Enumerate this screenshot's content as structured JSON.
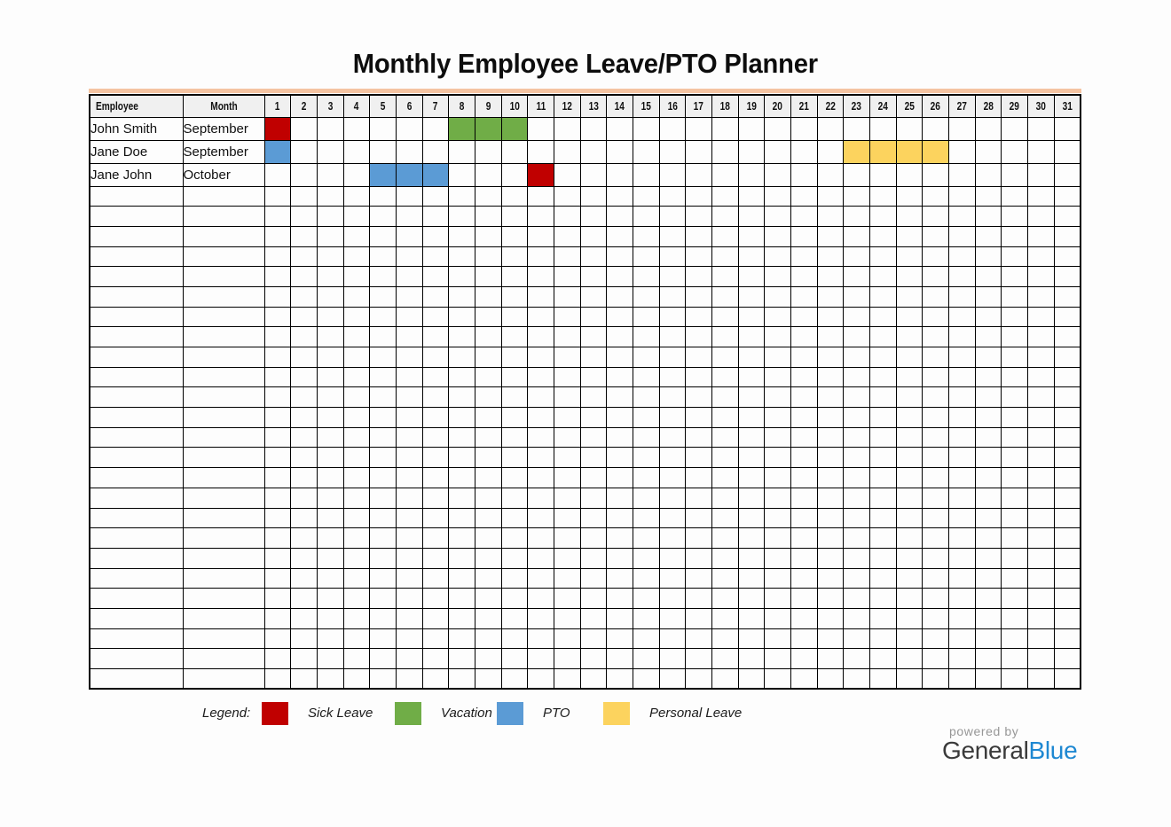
{
  "title": "Monthly Employee Leave/PTO Planner",
  "table": {
    "headers": {
      "employee": "Employee",
      "month": "Month"
    },
    "day_headers": [
      "1",
      "2",
      "3",
      "4",
      "5",
      "6",
      "7",
      "8",
      "9",
      "10",
      "11",
      "12",
      "13",
      "14",
      "15",
      "16",
      "17",
      "18",
      "19",
      "20",
      "21",
      "22",
      "23",
      "24",
      "25",
      "26",
      "27",
      "28",
      "29",
      "30",
      "31"
    ],
    "rows": [
      {
        "employee": "John Smith",
        "month": "September",
        "leaves": [
          {
            "type": "sick",
            "days": [
              1
            ]
          },
          {
            "type": "vacation",
            "days": [
              8,
              9,
              10
            ]
          }
        ]
      },
      {
        "employee": "Jane Doe",
        "month": "September",
        "leaves": [
          {
            "type": "pto",
            "days": [
              1
            ]
          },
          {
            "type": "personal",
            "days": [
              23,
              24,
              25,
              26
            ]
          }
        ]
      },
      {
        "employee": "Jane John",
        "month": "October",
        "leaves": [
          {
            "type": "pto",
            "days": [
              5,
              6,
              7
            ]
          },
          {
            "type": "sick",
            "days": [
              11
            ]
          }
        ]
      }
    ],
    "empty_row_count": 25
  },
  "legend": {
    "label": "Legend:",
    "items": [
      {
        "type": "sick",
        "label": "Sick Leave"
      },
      {
        "type": "vacation",
        "label": "Vacation"
      },
      {
        "type": "pto",
        "label": "PTO"
      },
      {
        "type": "personal",
        "label": "Personal Leave"
      }
    ]
  },
  "colors": {
    "sick": "#c00000",
    "vacation": "#70ad47",
    "pto": "#5b9bd5",
    "personal": "#fcd35e",
    "header_bg": "#f0f0f0",
    "accent_band": "#f5c4a2",
    "brand_blue": "#1e88d2"
  },
  "footer": {
    "powered_by": "powered by",
    "brand_general": "General",
    "brand_blue": "Blue"
  }
}
